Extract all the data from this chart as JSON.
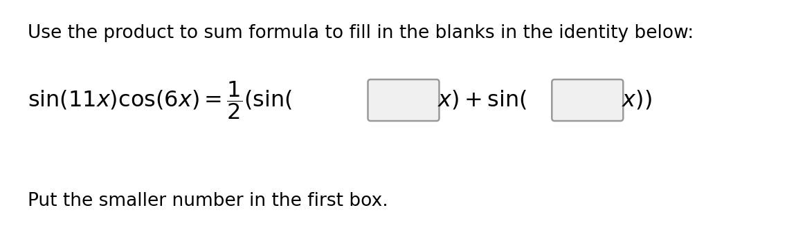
{
  "title_text": "Use the product to sum formula to fill in the blanks in the identity below:",
  "footer_text": "Put the smaller number in the first box.",
  "bg_color": "#ffffff",
  "text_color": "#000000",
  "box_edgecolor": "#999999",
  "box_facecolor": "#f0f0f0",
  "title_fontsize": 19,
  "footer_fontsize": 19,
  "formula_fontsize": 23,
  "fig_width": 11.5,
  "fig_height": 3.3,
  "dpi": 100
}
